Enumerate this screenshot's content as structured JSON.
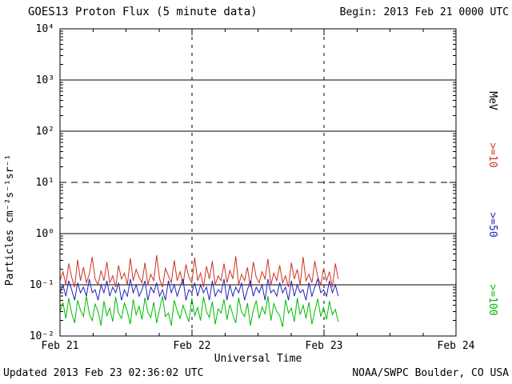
{
  "header": {
    "title": "GOES13 Proton Flux (5 minute data)",
    "begin_label": "Begin: 2013 Feb 21 0000 UTC"
  },
  "footer": {
    "updated": "Updated 2013 Feb 23 02:36:02 UTC",
    "source": "NOAA/SWPC Boulder, CO USA"
  },
  "axes": {
    "x_label": "Universal Time",
    "y_label": "Particles cm⁻²s⁻¹sr⁻¹",
    "y_ticks": [
      {
        "label": "10⁴",
        "exp": 4
      },
      {
        "label": "10³",
        "exp": 3
      },
      {
        "label": "10²",
        "exp": 2
      },
      {
        "label": "10¹",
        "exp": 1
      },
      {
        "label": "10⁰",
        "exp": 0
      },
      {
        "label": "10⁻¹",
        "exp": -1
      },
      {
        "label": "10⁻²",
        "exp": -2
      }
    ],
    "x_ticks": [
      {
        "label": "Feb 21",
        "day": 0
      },
      {
        "label": "Feb 22",
        "day": 1
      },
      {
        "label": "Feb 23",
        "day": 2
      },
      {
        "label": "Feb 24",
        "day": 3
      }
    ]
  },
  "right_axis_labels": [
    {
      "text": "MeV",
      "color": "#000000"
    },
    {
      "text": ">=10",
      "color": "#cc3322"
    },
    {
      "text": ">=50",
      "color": "#2222bb"
    },
    {
      "text": ">=100",
      "color": "#00bb00"
    }
  ],
  "chart_data": {
    "type": "line",
    "title": "GOES13 Proton Flux (5 minute data)",
    "xlabel": "Universal Time",
    "ylabel": "Particles cm-2 s-1 sr-1",
    "x_axis": {
      "start": "2013 Feb 21 0000 UTC",
      "end": "2013 Feb 24 0000 UTC",
      "span_days": 3,
      "tick_labels": [
        "Feb 21",
        "Feb 22",
        "Feb 23",
        "Feb 24"
      ]
    },
    "y_axis": {
      "scale": "log10",
      "min_exp": -2,
      "max_exp": 4
    },
    "grid": {
      "horizontal_solid_exps": [
        3,
        2,
        0,
        -1
      ],
      "horizontal_dashed_exps": [
        1
      ],
      "vertical_dashed_days": [
        1,
        2
      ]
    },
    "data_start_day": 0,
    "data_end_day": 2.108,
    "series": [
      {
        "name": ">=10 MeV",
        "color": "#cc3322",
        "approx_range": [
          0.09,
          0.38
        ],
        "values": [
          0.12,
          0.18,
          0.1,
          0.26,
          0.14,
          0.09,
          0.31,
          0.12,
          0.22,
          0.11,
          0.16,
          0.35,
          0.13,
          0.1,
          0.19,
          0.12,
          0.28,
          0.11,
          0.15,
          0.09,
          0.24,
          0.13,
          0.17,
          0.1,
          0.33,
          0.12,
          0.2,
          0.14,
          0.11,
          0.27,
          0.1,
          0.16,
          0.12,
          0.38,
          0.13,
          0.09,
          0.21,
          0.15,
          0.11,
          0.3,
          0.12,
          0.18,
          0.1,
          0.25,
          0.14,
          0.11,
          0.34,
          0.12,
          0.17,
          0.09,
          0.23,
          0.13,
          0.29,
          0.1,
          0.15,
          0.12,
          0.26,
          0.11,
          0.19,
          0.13,
          0.36,
          0.1,
          0.16,
          0.12,
          0.22,
          0.09,
          0.28,
          0.14,
          0.11,
          0.18,
          0.13,
          0.32,
          0.1,
          0.17,
          0.12,
          0.24,
          0.11,
          0.15,
          0.09,
          0.27,
          0.13,
          0.2,
          0.1,
          0.35,
          0.12,
          0.16,
          0.11,
          0.29,
          0.14,
          0.1,
          0.21,
          0.12,
          0.18,
          0.09,
          0.26,
          0.13
        ]
      },
      {
        "name": ">=50 MeV",
        "color": "#2222bb",
        "approx_range": [
          0.05,
          0.13
        ],
        "values": [
          0.07,
          0.1,
          0.06,
          0.12,
          0.08,
          0.05,
          0.11,
          0.07,
          0.09,
          0.06,
          0.13,
          0.07,
          0.08,
          0.05,
          0.1,
          0.07,
          0.12,
          0.06,
          0.09,
          0.07,
          0.11,
          0.05,
          0.08,
          0.06,
          0.13,
          0.07,
          0.1,
          0.06,
          0.08,
          0.12,
          0.05,
          0.09,
          0.07,
          0.11,
          0.06,
          0.08,
          0.05,
          0.12,
          0.07,
          0.1,
          0.06,
          0.09,
          0.13,
          0.05,
          0.08,
          0.07,
          0.11,
          0.06,
          0.1,
          0.07,
          0.09,
          0.05,
          0.12,
          0.06,
          0.08,
          0.07,
          0.13,
          0.05,
          0.1,
          0.06,
          0.09,
          0.07,
          0.11,
          0.05,
          0.08,
          0.12,
          0.06,
          0.09,
          0.07,
          0.1,
          0.05,
          0.13,
          0.07,
          0.08,
          0.06,
          0.11,
          0.07,
          0.09,
          0.05,
          0.12,
          0.06,
          0.1,
          0.07,
          0.08,
          0.05,
          0.11,
          0.06,
          0.09,
          0.13,
          0.07,
          0.08,
          0.06,
          0.12,
          0.07,
          0.1,
          0.06
        ]
      },
      {
        "name": ">=100 MeV",
        "color": "#00bb00",
        "approx_range": [
          0.015,
          0.06
        ],
        "values": [
          0.03,
          0.045,
          0.022,
          0.055,
          0.028,
          0.018,
          0.05,
          0.032,
          0.024,
          0.06,
          0.027,
          0.02,
          0.042,
          0.03,
          0.016,
          0.048,
          0.025,
          0.035,
          0.019,
          0.058,
          0.028,
          0.022,
          0.044,
          0.03,
          0.017,
          0.052,
          0.026,
          0.038,
          0.021,
          0.056,
          0.029,
          0.023,
          0.046,
          0.018,
          0.033,
          0.06,
          0.024,
          0.028,
          0.016,
          0.05,
          0.031,
          0.022,
          0.04,
          0.027,
          0.019,
          0.054,
          0.025,
          0.036,
          0.02,
          0.058,
          0.03,
          0.023,
          0.047,
          0.017,
          0.034,
          0.028,
          0.052,
          0.021,
          0.041,
          0.026,
          0.018,
          0.056,
          0.029,
          0.024,
          0.044,
          0.016,
          0.032,
          0.049,
          0.022,
          0.037,
          0.027,
          0.06,
          0.02,
          0.043,
          0.03,
          0.025,
          0.015,
          0.051,
          0.028,
          0.035,
          0.019,
          0.055,
          0.026,
          0.04,
          0.022,
          0.046,
          0.017,
          0.031,
          0.053,
          0.024,
          0.036,
          0.021,
          0.048,
          0.026,
          0.033,
          0.019
        ]
      }
    ]
  }
}
